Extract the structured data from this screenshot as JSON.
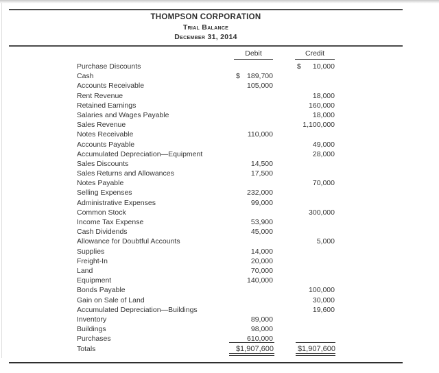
{
  "document": {
    "company": "THOMPSON CORPORATION",
    "report_title": "Trial Balance",
    "report_date": "December 31, 2014"
  },
  "columns": {
    "debit": "Debit",
    "credit": "Credit"
  },
  "rows": [
    {
      "account": "Purchase Discounts",
      "debit_prefix": "",
      "debit": "",
      "credit_prefix": "$",
      "credit": "10,000"
    },
    {
      "account": "Cash",
      "debit_prefix": "$",
      "debit": "189,700",
      "credit_prefix": "",
      "credit": ""
    },
    {
      "account": "Accounts Receivable",
      "debit_prefix": "",
      "debit": "105,000",
      "credit_prefix": "",
      "credit": ""
    },
    {
      "account": "Rent Revenue",
      "debit_prefix": "",
      "debit": "",
      "credit_prefix": "",
      "credit": "18,000"
    },
    {
      "account": "Retained Earnings",
      "debit_prefix": "",
      "debit": "",
      "credit_prefix": "",
      "credit": "160,000"
    },
    {
      "account": "Salaries and Wages Payable",
      "debit_prefix": "",
      "debit": "",
      "credit_prefix": "",
      "credit": "18,000"
    },
    {
      "account": "Sales Revenue",
      "debit_prefix": "",
      "debit": "",
      "credit_prefix": "",
      "credit": "1,100,000"
    },
    {
      "account": "Notes Receivable",
      "debit_prefix": "",
      "debit": "110,000",
      "credit_prefix": "",
      "credit": ""
    },
    {
      "account": "Accounts Payable",
      "debit_prefix": "",
      "debit": "",
      "credit_prefix": "",
      "credit": "49,000"
    },
    {
      "account": "Accumulated Depreciation—Equipment",
      "debit_prefix": "",
      "debit": "",
      "credit_prefix": "",
      "credit": "28,000"
    },
    {
      "account": "Sales Discounts",
      "debit_prefix": "",
      "debit": "14,500",
      "credit_prefix": "",
      "credit": ""
    },
    {
      "account": "Sales Returns and Allowances",
      "debit_prefix": "",
      "debit": "17,500",
      "credit_prefix": "",
      "credit": ""
    },
    {
      "account": "Notes Payable",
      "debit_prefix": "",
      "debit": "",
      "credit_prefix": "",
      "credit": "70,000"
    },
    {
      "account": "Selling Expenses",
      "debit_prefix": "",
      "debit": "232,000",
      "credit_prefix": "",
      "credit": ""
    },
    {
      "account": "Administrative Expenses",
      "debit_prefix": "",
      "debit": "99,000",
      "credit_prefix": "",
      "credit": ""
    },
    {
      "account": "Common Stock",
      "debit_prefix": "",
      "debit": "",
      "credit_prefix": "",
      "credit": "300,000"
    },
    {
      "account": "Income Tax Expense",
      "debit_prefix": "",
      "debit": "53,900",
      "credit_prefix": "",
      "credit": ""
    },
    {
      "account": "Cash Dividends",
      "debit_prefix": "",
      "debit": "45,000",
      "credit_prefix": "",
      "credit": ""
    },
    {
      "account": "Allowance for Doubtful Accounts",
      "debit_prefix": "",
      "debit": "",
      "credit_prefix": "",
      "credit": "5,000"
    },
    {
      "account": "Supplies",
      "debit_prefix": "",
      "debit": "14,000",
      "credit_prefix": "",
      "credit": ""
    },
    {
      "account": "Freight-In",
      "debit_prefix": "",
      "debit": "20,000",
      "credit_prefix": "",
      "credit": ""
    },
    {
      "account": "Land",
      "debit_prefix": "",
      "debit": "70,000",
      "credit_prefix": "",
      "credit": ""
    },
    {
      "account": "Equipment",
      "debit_prefix": "",
      "debit": "140,000",
      "credit_prefix": "",
      "credit": ""
    },
    {
      "account": "Bonds Payable",
      "debit_prefix": "",
      "debit": "",
      "credit_prefix": "",
      "credit": "100,000"
    },
    {
      "account": "Gain on Sale of Land",
      "debit_prefix": "",
      "debit": "",
      "credit_prefix": "",
      "credit": "30,000"
    },
    {
      "account": "Accumulated Depreciation—Buildings",
      "debit_prefix": "",
      "debit": "",
      "credit_prefix": "",
      "credit": "19,600"
    },
    {
      "account": "Inventory",
      "debit_prefix": "",
      "debit": "89,000",
      "credit_prefix": "",
      "credit": ""
    },
    {
      "account": "Buildings",
      "debit_prefix": "",
      "debit": "98,000",
      "credit_prefix": "",
      "credit": ""
    },
    {
      "account": "Purchases",
      "debit_prefix": "",
      "debit": "610,000",
      "credit_prefix": "",
      "credit": ""
    }
  ],
  "totals": {
    "label": "Totals",
    "debit": "$1,907,600",
    "credit": "$1,907,600"
  },
  "colors": {
    "ink": "#333333",
    "rule": "#4a4a4a",
    "bottom_rule": "#2e2e2e"
  }
}
